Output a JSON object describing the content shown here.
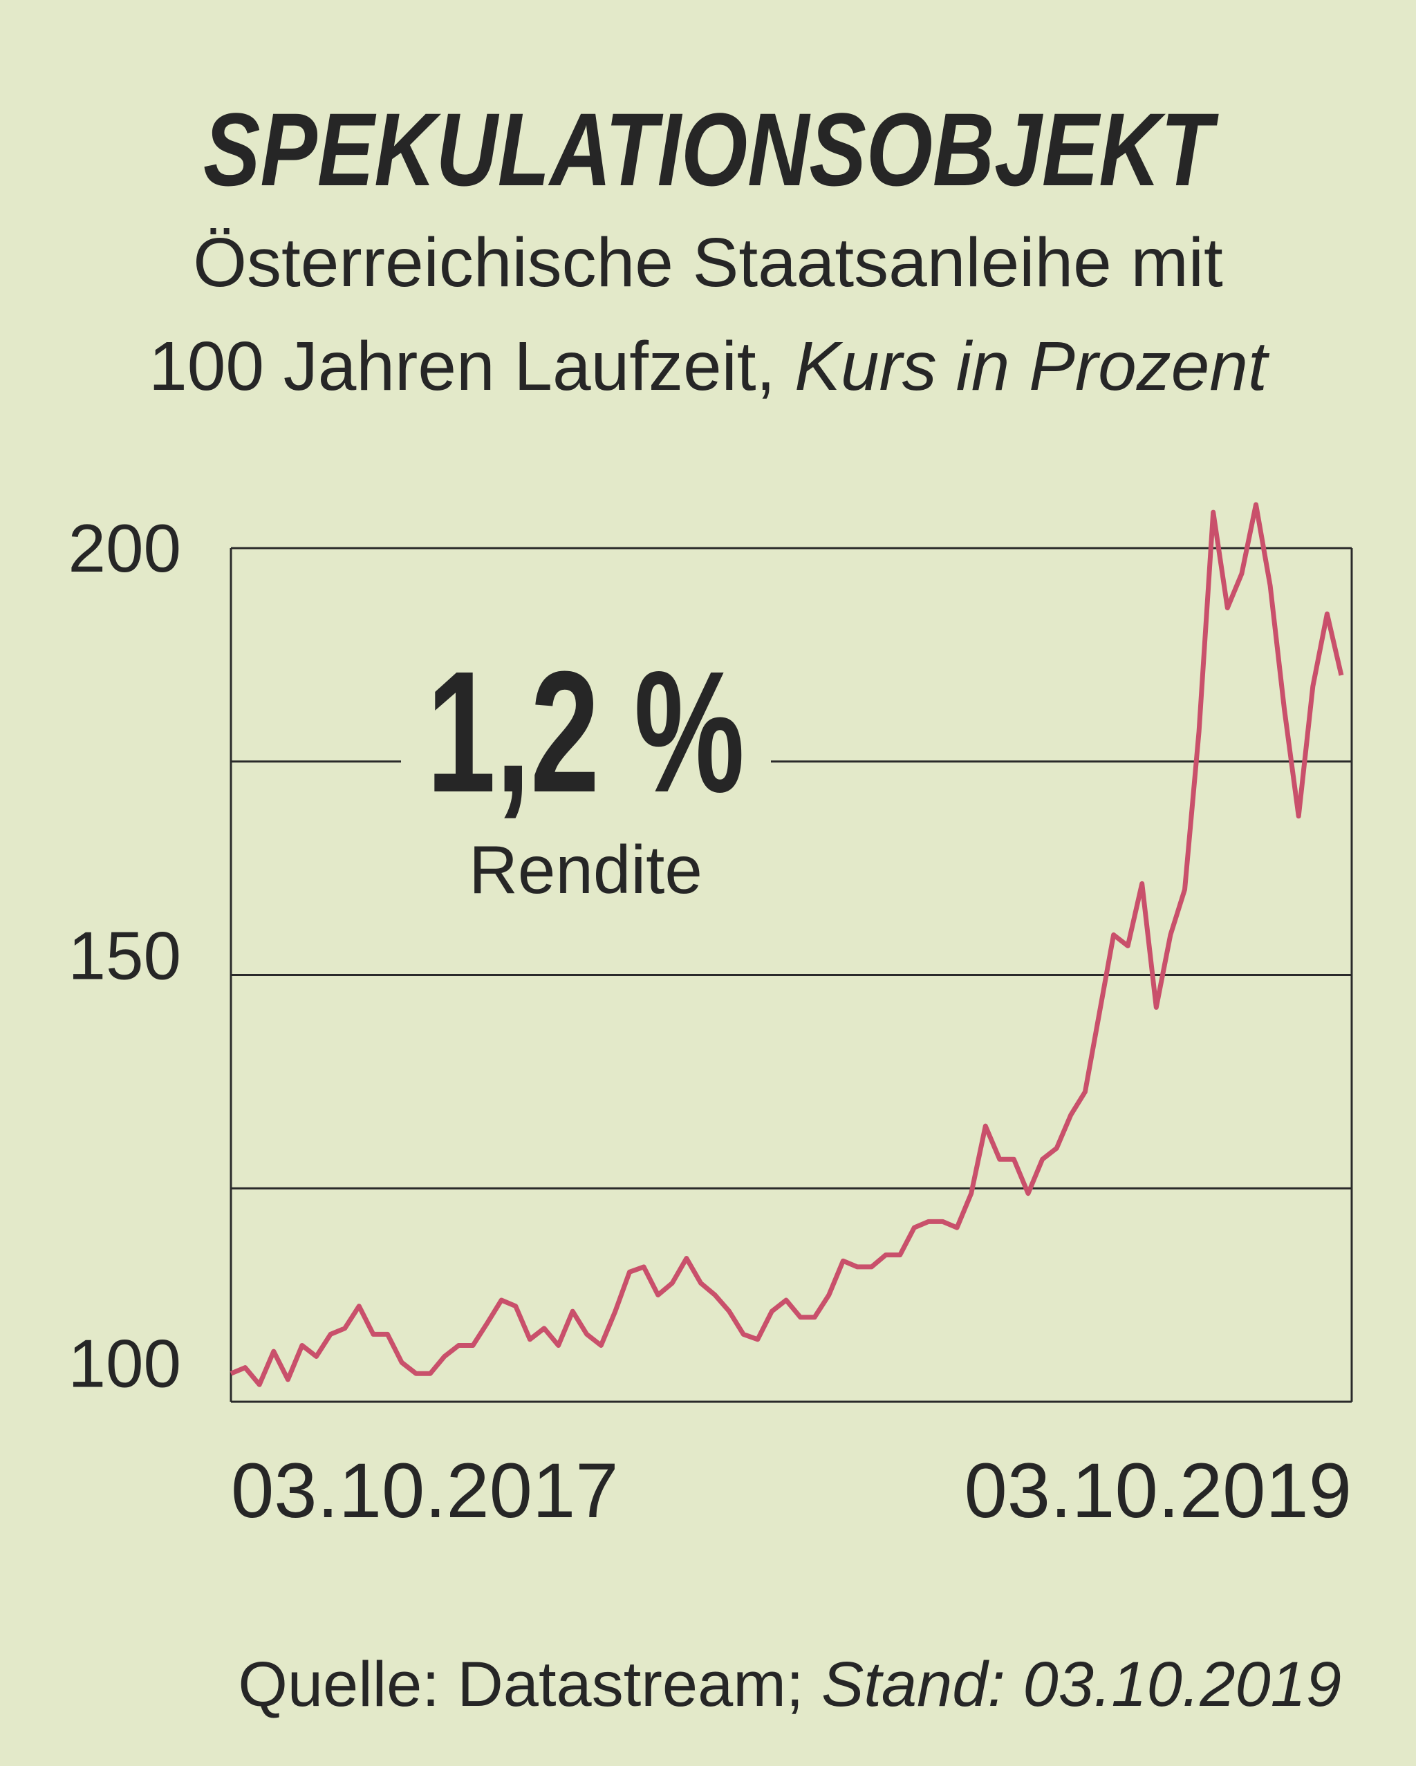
{
  "chart_data": {
    "type": "line",
    "title": "SPEKULATIONSOBJEKT",
    "subtitle": [
      "Österreichische Staatsanleihe mit",
      "100 Jahren Laufzeit,"
    ],
    "subtitle_italic": "Kurs in Prozent",
    "annotation": "1,2 %",
    "annotation_label": "Rendite",
    "x_labels": [
      "03.10.2017",
      "03.10.2019"
    ],
    "ylim": [
      100,
      200
    ],
    "yticks": [
      100,
      {
        "value": 125,
        "label": null
      },
      150,
      {
        "value": 175,
        "label": null
      },
      200
    ],
    "grid": true,
    "series": [
      {
        "name": null,
        "color": "#c9506b",
        "values": [
          103.3,
          104.0,
          102.0,
          105.9,
          102.6,
          106.6,
          105.3,
          107.9,
          108.6,
          111.2,
          107.9,
          107.9,
          104.6,
          103.3,
          103.3,
          105.3,
          106.6,
          106.6,
          109.2,
          111.9,
          111.2,
          107.3,
          108.6,
          106.6,
          110.6,
          107.9,
          106.6,
          110.6,
          115.2,
          115.8,
          112.5,
          113.9,
          116.8,
          113.9,
          112.5,
          110.6,
          107.9,
          107.3,
          110.6,
          111.9,
          109.9,
          109.9,
          112.5,
          116.5,
          115.8,
          115.8,
          117.2,
          117.2,
          120.4,
          121.1,
          121.1,
          120.4,
          124.4,
          132.3,
          128.4,
          128.4,
          124.4,
          128.4,
          129.7,
          133.6,
          136.3,
          145.5,
          154.7,
          153.4,
          160.7,
          146.2,
          154.7,
          160.0,
          178.5,
          204.2,
          193.0,
          197.0,
          205.1,
          195.6,
          181.1,
          168.6,
          183.8,
          192.3,
          185.1
        ]
      }
    ],
    "source": "Quelle: Datastream;",
    "source_italic": "Stand: 03.10.2019"
  }
}
